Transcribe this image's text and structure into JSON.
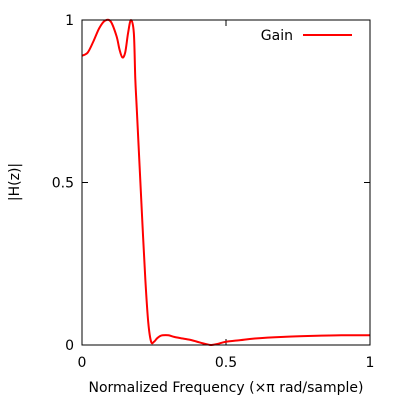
{
  "chart_data": {
    "type": "line",
    "title": "",
    "xlabel": "Normalized Frequency (×π rad/sample)",
    "ylabel": "|H(z)|",
    "xlim": [
      0,
      1
    ],
    "ylim": [
      0,
      1
    ],
    "x_ticks": [
      0,
      0.5,
      1
    ],
    "x_tick_labels": [
      "0",
      "0.5",
      "1"
    ],
    "y_ticks": [
      0,
      0.5,
      1
    ],
    "y_tick_labels": [
      "0",
      "0.5",
      "1"
    ],
    "grid": false,
    "legend_position": "top-right",
    "series": [
      {
        "name": "Gain",
        "color": "#ff0000",
        "x": [
          0,
          0.02,
          0.04,
          0.06,
          0.08,
          0.1,
          0.12,
          0.13,
          0.14,
          0.15,
          0.16,
          0.17,
          0.18,
          0.185,
          0.19,
          0.2,
          0.21,
          0.22,
          0.23,
          0.24,
          0.25,
          0.26,
          0.27,
          0.28,
          0.3,
          0.32,
          0.35,
          0.38,
          0.4,
          0.42,
          0.44,
          0.45,
          0.47,
          0.5,
          0.55,
          0.6,
          0.7,
          0.8,
          0.9,
          1.0
        ],
        "y": [
          0.89,
          0.9,
          0.935,
          0.975,
          0.998,
          0.995,
          0.95,
          0.91,
          0.885,
          0.9,
          0.96,
          1.0,
          0.96,
          0.82,
          0.73,
          0.55,
          0.37,
          0.2,
          0.07,
          0.01,
          0.01,
          0.02,
          0.027,
          0.03,
          0.03,
          0.025,
          0.02,
          0.015,
          0.01,
          0.005,
          0.001,
          0.0,
          0.003,
          0.01,
          0.015,
          0.02,
          0.025,
          0.028,
          0.03,
          0.03
        ]
      }
    ]
  }
}
